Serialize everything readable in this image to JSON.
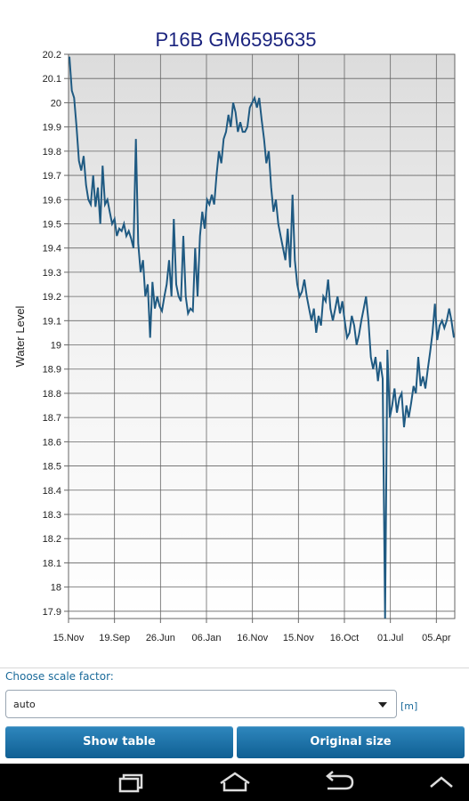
{
  "chart_data": {
    "type": "line",
    "title": "P16B GM6595635",
    "ylabel": "Water Level",
    "xlabel": "",
    "ylim": [
      17.87,
      20.2
    ],
    "yticks": [
      20.2,
      20.1,
      20,
      19.9,
      19.8,
      19.7,
      19.6,
      19.5,
      19.4,
      19.3,
      19.2,
      19.1,
      19,
      18.9,
      18.8,
      18.7,
      18.6,
      18.5,
      18.4,
      18.3,
      18.2,
      18.1,
      18,
      17.9
    ],
    "xticks": [
      "15.Nov",
      "19.Sep",
      "26.Jun",
      "06.Jan",
      "16.Nov",
      "15.Nov",
      "16.Oct",
      "01.Jul",
      "05.Apr"
    ],
    "grid": true,
    "color": "#1f5a82",
    "values": [
      20.19,
      20.05,
      20.02,
      19.9,
      19.76,
      19.72,
      19.78,
      19.66,
      19.6,
      19.58,
      19.7,
      19.57,
      19.65,
      19.5,
      19.74,
      19.58,
      19.6,
      19.55,
      19.5,
      19.52,
      19.45,
      19.48,
      19.47,
      19.5,
      19.45,
      19.47,
      19.44,
      19.4,
      19.85,
      19.42,
      19.3,
      19.35,
      19.2,
      19.25,
      19.03,
      19.26,
      19.15,
      19.2,
      19.16,
      19.14,
      19.2,
      19.25,
      19.35,
      19.2,
      19.52,
      19.25,
      19.2,
      19.18,
      19.45,
      19.2,
      19.13,
      19.15,
      19.14,
      19.4,
      19.2,
      19.45,
      19.55,
      19.48,
      19.6,
      19.58,
      19.62,
      19.58,
      19.7,
      19.8,
      19.75,
      19.85,
      19.88,
      19.95,
      19.9,
      20.0,
      19.96,
      19.88,
      19.92,
      19.88,
      19.88,
      19.9,
      19.98,
      20.0,
      20.02,
      19.98,
      20.02,
      19.93,
      19.85,
      19.75,
      19.8,
      19.65,
      19.55,
      19.6,
      19.5,
      19.45,
      19.4,
      19.35,
      19.48,
      19.32,
      19.62,
      19.35,
      19.25,
      19.2,
      19.22,
      19.27,
      19.2,
      19.15,
      19.1,
      19.15,
      19.05,
      19.12,
      19.08,
      19.2,
      19.18,
      19.27,
      19.15,
      19.1,
      19.15,
      19.2,
      19.13,
      19.18,
      19.1,
      19.03,
      19.05,
      19.12,
      19.08,
      19.0,
      19.04,
      19.1,
      19.15,
      19.2,
      19.1,
      18.95,
      18.9,
      18.95,
      18.85,
      18.93,
      18.86,
      17.87,
      18.98,
      18.7,
      18.75,
      18.82,
      18.72,
      18.78,
      18.8,
      18.66,
      18.75,
      18.7,
      18.76,
      18.83,
      18.8,
      18.95,
      18.83,
      18.87,
      18.82,
      18.9,
      18.97,
      19.05,
      19.17,
      19.02,
      19.08,
      19.1,
      19.07,
      19.1,
      19.15,
      19.1,
      19.03
    ]
  },
  "controls": {
    "scale_label": "Choose scale factor:",
    "scale_value": "auto",
    "unit": "[m]",
    "show_table": "Show table",
    "original_size": "Original size"
  },
  "icons": {
    "back": "back-icon",
    "home": "home-icon",
    "recent": "recent-apps-icon",
    "up": "chevron-up-icon"
  }
}
